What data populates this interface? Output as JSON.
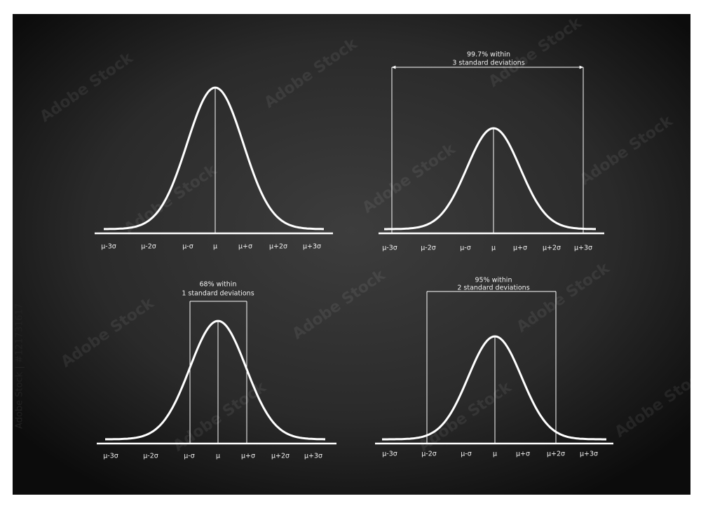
{
  "watermark": {
    "side": "Adobe Stock | #121731617",
    "tile": "Adobe Stock"
  },
  "panels": [
    {
      "axis_labels": [
        "μ-3σ",
        "μ-2σ",
        "μ-σ",
        "μ",
        "μ+σ",
        "μ+2σ",
        "μ+3σ"
      ]
    },
    {
      "annotation": [
        "99.7% within",
        "3 standard deviations"
      ],
      "axis_labels": [
        "μ-3σ",
        "μ-2σ",
        "μ-σ",
        "μ",
        "μ+σ",
        "μ+2σ",
        "μ+3σ"
      ]
    },
    {
      "annotation": [
        "68% within",
        "1 standard deviations"
      ],
      "axis_labels": [
        "μ-3σ",
        "μ-2σ",
        "μ-σ",
        "μ",
        "μ+σ",
        "μ+2σ",
        "μ+3σ"
      ]
    },
    {
      "annotation": [
        "95% within",
        "2 standard deviations"
      ],
      "axis_labels": [
        "μ-3σ",
        "μ-2σ",
        "μ-σ",
        "μ",
        "μ+σ",
        "μ+2σ",
        "μ+3σ"
      ]
    }
  ]
}
